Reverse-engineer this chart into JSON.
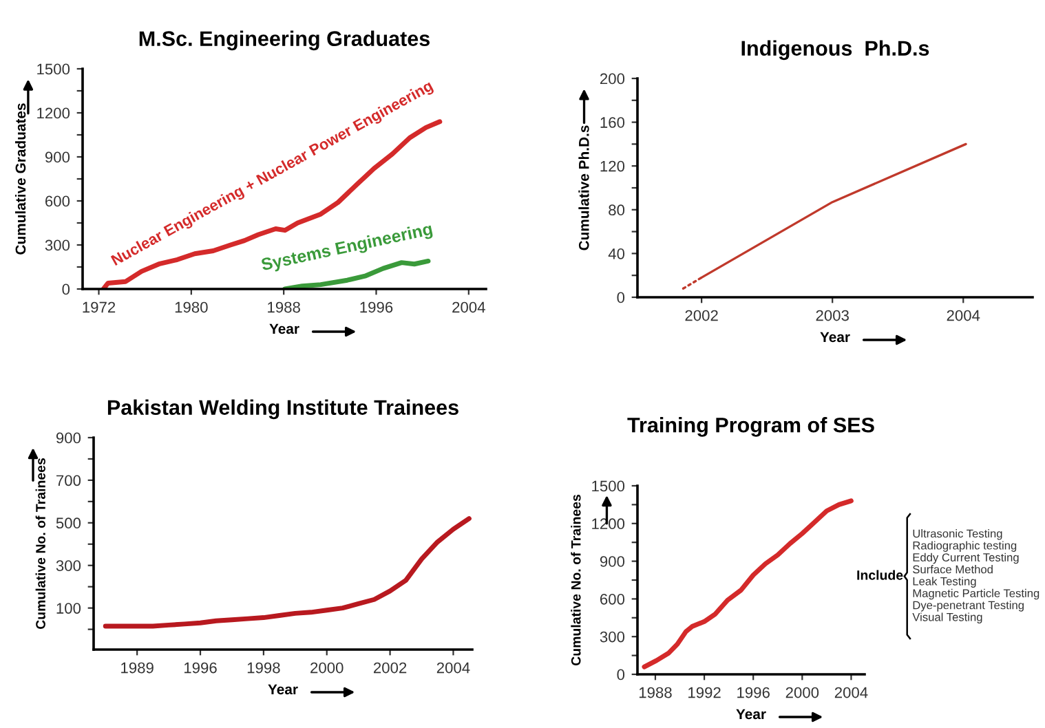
{
  "chart_data": [
    {
      "type": "line",
      "title": "M.Sc. Engineering Graduates",
      "xlabel": "Year",
      "ylabel": "Cumulative Graduates",
      "xlim": [
        1970.6,
        2005.5
      ],
      "xticks": [
        1972,
        1980,
        1988,
        1996,
        2004
      ],
      "ylim": [
        0,
        1500
      ],
      "yticks": [
        0,
        {
          "value": 150,
          "label": null
        },
        300,
        {
          "value": 450,
          "label": null
        },
        600,
        {
          "value": 750,
          "label": null
        },
        900,
        {
          "value": 1050,
          "label": null
        },
        1200,
        {
          "value": 1350,
          "label": null
        },
        1500
      ],
      "series": [
        {
          "name": "Nuclear Engineering + Nuclear Power Engineering",
          "color": "#d42a2a",
          "x": [
            1972.4,
            1972.8,
            1974.3,
            1975.7,
            1977.2,
            1978.8,
            1980.3,
            1981.9,
            1983.4,
            1984.6,
            1985.8,
            1987.3,
            1988.1,
            1989.2,
            1991.2,
            1992.7,
            1994.3,
            1995.8,
            1997.4,
            1998.9,
            2000.3,
            2001.5
          ],
          "values": [
            0,
            40,
            50,
            120,
            170,
            200,
            240,
            260,
            300,
            330,
            370,
            410,
            400,
            450,
            510,
            590,
            710,
            820,
            920,
            1030,
            1100,
            1140
          ]
        },
        {
          "name": "Systems Engineering",
          "color": "#3a9a3a",
          "x": [
            1988.1,
            1989.6,
            1991.2,
            1993.5,
            1995.1,
            1996.6,
            1998.2,
            1999.3,
            2000.5
          ],
          "values": [
            0,
            20,
            30,
            60,
            90,
            140,
            180,
            170,
            190
          ]
        }
      ],
      "grid": false,
      "legend": false,
      "line_style": "solid",
      "marker": "none"
    },
    {
      "type": "line",
      "title": "Indigenous  Ph.D.s",
      "xlabel": "Year",
      "ylabel": "Cumulative Ph.D.s",
      "xlim": [
        2001.51,
        2004.53
      ],
      "xticks": [
        2002,
        2003,
        2004
      ],
      "ylim": [
        0,
        200
      ],
      "yticks": [
        0,
        {
          "value": 20,
          "label": null
        },
        40,
        {
          "value": 60,
          "label": null
        },
        80,
        {
          "value": 100,
          "label": null
        },
        120,
        {
          "value": 140,
          "label": null
        },
        160,
        {
          "value": 180,
          "label": null
        },
        200
      ],
      "series": [
        {
          "color": "#c0392b",
          "line_style": "dotted",
          "x": [
            2001.86,
            2002.0
          ],
          "values": [
            8,
            18
          ]
        },
        {
          "color": "#c0392b",
          "line_style": "solid",
          "x": [
            2002.0,
            2003.0,
            2004.02
          ],
          "values": [
            18,
            87,
            140
          ]
        }
      ],
      "grid": false,
      "legend": false,
      "marker": "none"
    },
    {
      "type": "line",
      "title": "Pakistan Welding Institute Trainees",
      "xlabel": "Year",
      "ylabel": "Cumulative No. of Trainees",
      "categories": [
        null,
        null,
        "1989",
        null,
        null,
        null,
        "1996",
        null,
        null,
        null,
        "1998",
        null,
        null,
        null,
        "2000",
        null,
        null,
        null,
        "2002",
        null,
        null,
        null,
        "2004",
        null
      ],
      "ylim": [
        -95,
        900
      ],
      "yticks": [
        {
          "value": 0,
          "label": null
        },
        100,
        {
          "value": 200,
          "label": null
        },
        300,
        {
          "value": 400,
          "label": null
        },
        500,
        {
          "value": 600,
          "label": null
        },
        700,
        {
          "value": 800,
          "label": null
        },
        900
      ],
      "series": [
        {
          "color": "#b8191f",
          "values": [
            15,
            15,
            15,
            15,
            20,
            25,
            30,
            40,
            45,
            50,
            55,
            65,
            75,
            80,
            90,
            100,
            120,
            140,
            180,
            230,
            330,
            410,
            470,
            520
          ]
        }
      ],
      "grid": false,
      "legend": false,
      "line_style": "solid",
      "marker": "none"
    },
    {
      "type": "line",
      "title": "Training Program of SES",
      "xlabel": "Year",
      "ylabel": "Cumulative No. of Trainees",
      "xlim": [
        1986.54,
        2005.1
      ],
      "xticks": [
        1988,
        1992,
        1996,
        2000,
        2004
      ],
      "ylim": [
        0,
        1500
      ],
      "yticks": [
        0,
        {
          "value": 150,
          "label": null
        },
        300,
        {
          "value": 450,
          "label": null
        },
        600,
        {
          "value": 750,
          "label": null
        },
        900,
        {
          "value": 1050,
          "label": null
        },
        1200,
        {
          "value": 1350,
          "label": null
        },
        1500
      ],
      "series": [
        {
          "color": "#d42a2a",
          "x": [
            1987.1,
            1988.1,
            1989.1,
            1989.8,
            1990.5,
            1991,
            1992,
            1992.9,
            1993.9,
            1995,
            1996,
            1997,
            1998,
            1999,
            2000,
            2001,
            2002,
            2003,
            2004
          ],
          "values": [
            60,
            110,
            170,
            240,
            340,
            380,
            420,
            480,
            590,
            670,
            790,
            880,
            950,
            1040,
            1120,
            1210,
            1300,
            1350,
            1380
          ]
        }
      ],
      "annotations": [
        "Include",
        "Ultrasonic Testing",
        "Radiographic testing",
        "Eddy Current Testing",
        "Surface Method",
        "Leak Testing",
        "Magnetic Particle Testing",
        "Dye-penetrant Testing",
        "Visual Testing"
      ],
      "grid": false,
      "legend": false,
      "line_style": "solid",
      "marker": "none"
    }
  ]
}
